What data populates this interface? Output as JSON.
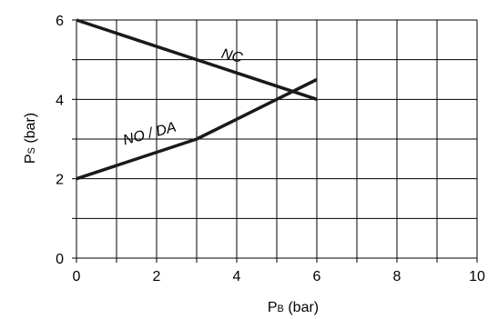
{
  "chart_data": {
    "type": "line",
    "xlabel": {
      "main": "P",
      "sub": "B",
      "unit": " (bar)"
    },
    "ylabel": {
      "main": "P",
      "sub": "S",
      "unit": " (bar)"
    },
    "xlim": [
      0,
      10
    ],
    "ylim": [
      0,
      6
    ],
    "x_ticks": [
      0,
      2,
      4,
      6,
      8,
      10
    ],
    "y_ticks": [
      0,
      2,
      4,
      6
    ],
    "grid": true,
    "series": [
      {
        "name": "NC",
        "x": [
          0,
          6
        ],
        "y": [
          6,
          4
        ]
      },
      {
        "name": "NO / DA",
        "x": [
          0,
          3,
          4,
          5,
          6
        ],
        "y": [
          2,
          3,
          3.5,
          4,
          4.5
        ]
      }
    ]
  }
}
